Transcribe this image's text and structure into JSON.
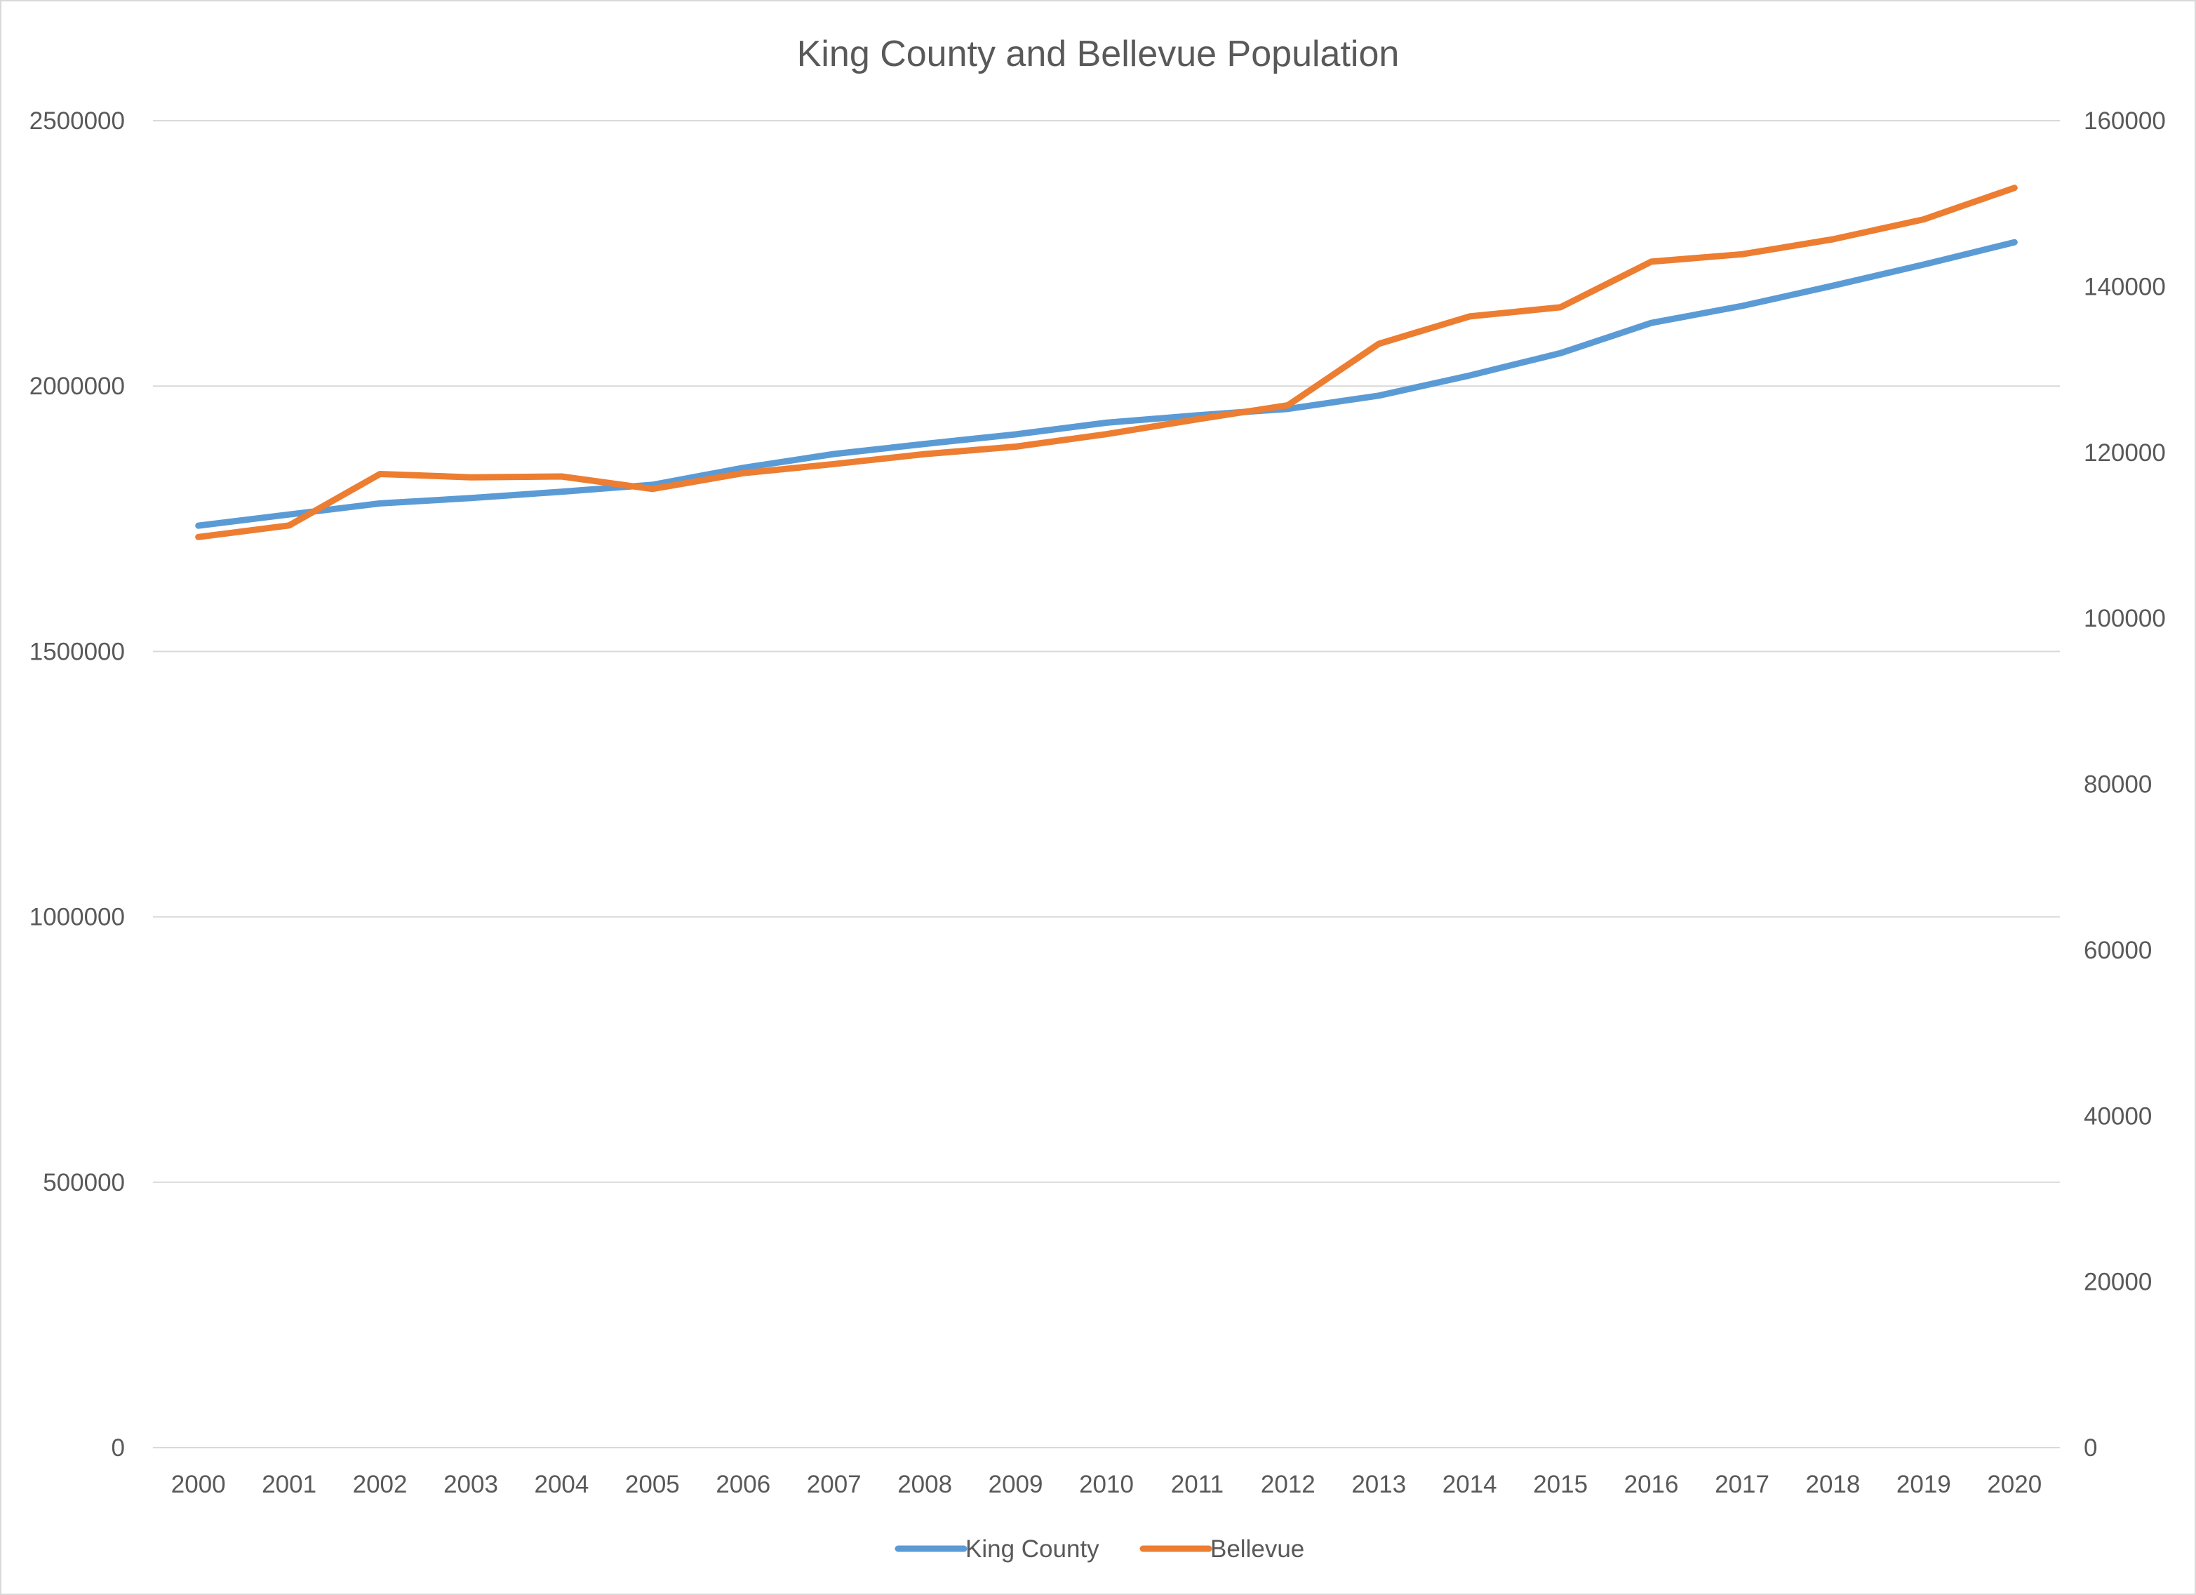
{
  "chart_data": {
    "type": "line",
    "title": "King County and Bellevue Population",
    "xlabel": "",
    "ylabel": "",
    "categories": [
      "2000",
      "2001",
      "2002",
      "2003",
      "2004",
      "2005",
      "2006",
      "2007",
      "2008",
      "2009",
      "2010",
      "2011",
      "2012",
      "2013",
      "2014",
      "2015",
      "2016",
      "2017",
      "2018",
      "2019",
      "2020"
    ],
    "y_left": {
      "range": [
        0,
        2500000
      ],
      "ticks": [
        "0",
        "500000",
        "1000000",
        "1500000",
        "2000000",
        "2500000"
      ],
      "tick_values": [
        0,
        500000,
        1000000,
        1500000,
        2000000,
        2500000
      ]
    },
    "y_right": {
      "range": [
        0,
        160000
      ],
      "ticks": [
        "0",
        "20000",
        "40000",
        "60000",
        "80000",
        "100000",
        "120000",
        "140000",
        "160000"
      ],
      "tick_values": [
        0,
        20000,
        40000,
        60000,
        80000,
        100000,
        120000,
        140000,
        160000
      ]
    },
    "grid": true,
    "legend_position": "bottom",
    "series": [
      {
        "name": "King County",
        "axis": "left",
        "color": "#5b9bd5",
        "values": [
          1737000,
          1758000,
          1779000,
          1789000,
          1801000,
          1814000,
          1846000,
          1872000,
          1891000,
          1909000,
          1931000,
          1945000,
          1957000,
          1982000,
          2020000,
          2062000,
          2119000,
          2151000,
          2189000,
          2229000,
          2271000
        ]
      },
      {
        "name": "Bellevue",
        "axis": "right",
        "color": "#ed7d31",
        "values": [
          109800,
          111200,
          117400,
          117000,
          117100,
          115600,
          117500,
          118600,
          119800,
          120700,
          122200,
          124000,
          125700,
          133100,
          136400,
          137500,
          143000,
          143900,
          145700,
          148100,
          151900
        ]
      }
    ]
  }
}
